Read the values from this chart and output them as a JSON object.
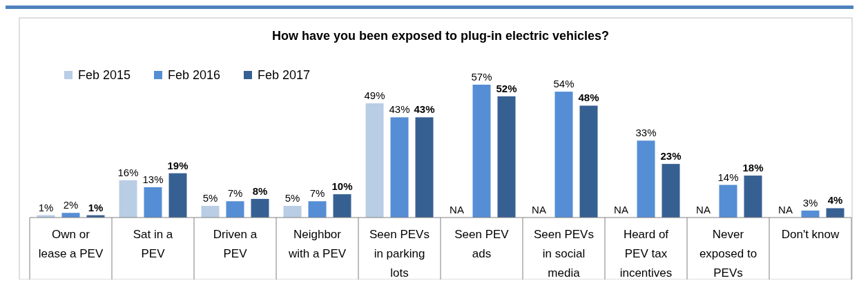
{
  "chart_data": {
    "type": "bar",
    "title": "How have you been exposed to plug-in electric vehicles?",
    "categories": [
      "Own or lease a PEV",
      "Sat in a PEV",
      "Driven a PEV",
      "Neighbor with a PEV",
      "Seen PEVs in parking lots",
      "Seen PEV ads",
      "Seen PEVs in social media",
      "Heard of PEV tax incentives",
      "Never exposed to PEVs",
      "Don't know"
    ],
    "series": [
      {
        "name": "Feb 2015",
        "color": "#b9cde5",
        "values": [
          1,
          16,
          5,
          5,
          49,
          null,
          null,
          null,
          null,
          null
        ],
        "value_labels": [
          "1%",
          "16%",
          "5%",
          "5%",
          "49%",
          "NA",
          "NA",
          "NA",
          "NA",
          "NA"
        ]
      },
      {
        "name": "Feb 2016",
        "color": "#558ed5",
        "values": [
          2,
          13,
          7,
          7,
          43,
          57,
          54,
          33,
          14,
          3
        ],
        "value_labels": [
          "2%",
          "13%",
          "7%",
          "7%",
          "43%",
          "57%",
          "54%",
          "33%",
          "14%",
          "3%"
        ]
      },
      {
        "name": "Feb 2017",
        "color": "#376092",
        "values": [
          1,
          19,
          8,
          10,
          43,
          52,
          48,
          23,
          18,
          4
        ],
        "value_labels": [
          "1%",
          "19%",
          "8%",
          "10%",
          "43%",
          "52%",
          "48%",
          "23%",
          "18%",
          "4%"
        ]
      }
    ],
    "legend": "top left",
    "grid": false
  }
}
